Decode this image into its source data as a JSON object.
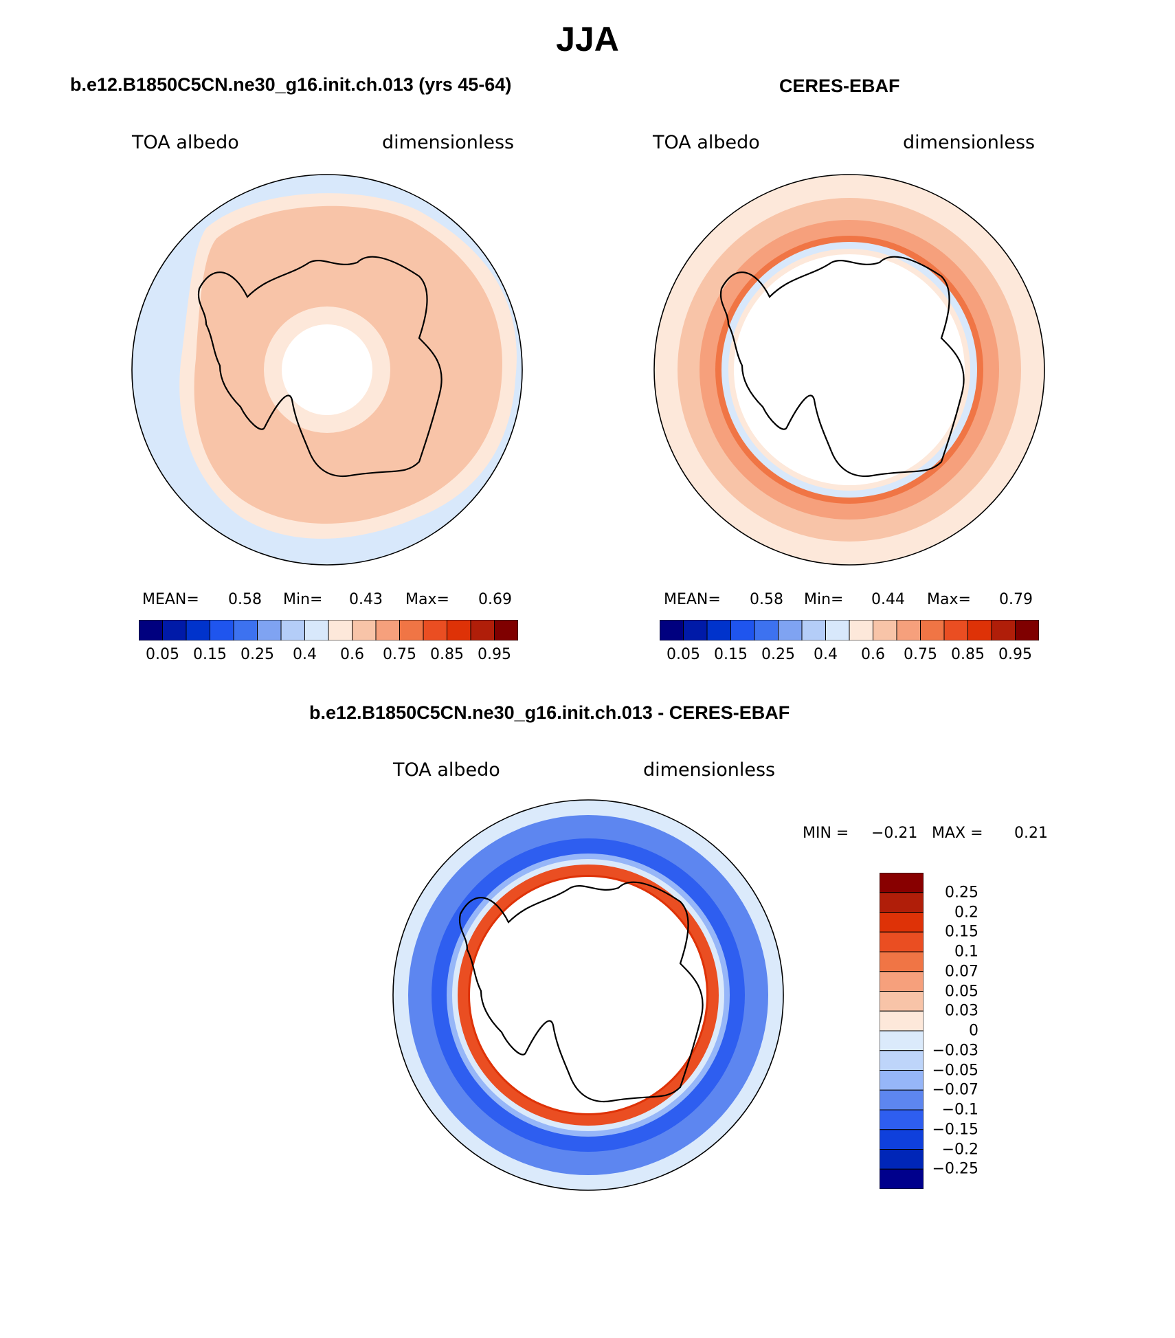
{
  "figure": {
    "title": "JJA"
  },
  "panels": {
    "model": {
      "title": "b.e12.B1850C5CN.ne30_g16.init.ch.013 (yrs 45-64)",
      "left_label": "TOA albedo",
      "right_label": "dimensionless",
      "stats": {
        "mean_label": "MEAN=",
        "mean": "0.58",
        "min_label": "Min=",
        "min": "0.43",
        "max_label": "Max=",
        "max": "0.69"
      }
    },
    "obs": {
      "title": "CERES-EBAF",
      "left_label": "TOA albedo",
      "right_label": "dimensionless",
      "stats": {
        "mean_label": "MEAN=",
        "mean": "0.58",
        "min_label": "Min=",
        "min": "0.44",
        "max_label": "Max=",
        "max": "0.79"
      }
    },
    "diff": {
      "title": "b.e12.B1850C5CN.ne30_g16.init.ch.013 - CERES-EBAF",
      "left_label": "TOA albedo",
      "right_label": "dimensionless",
      "stats": {
        "min_label": "MIN =",
        "min": "−0.21",
        "max_label": "MAX =",
        "max": "0.21"
      }
    }
  },
  "colorbars": {
    "absolute": {
      "colors": [
        "#00007f",
        "#001aa8",
        "#0033cc",
        "#1f55ee",
        "#3d72f0",
        "#7fa3f2",
        "#b4cdf8",
        "#d8e8fb",
        "#fde8da",
        "#f8c4a8",
        "#f6a07c",
        "#f07545",
        "#ea4e22",
        "#de3207",
        "#b01e09",
        "#7f0000"
      ],
      "tick_labels": [
        "0.05",
        "0.15",
        "0.25",
        "0.4",
        "0.6",
        "0.75",
        "0.85",
        "0.95"
      ]
    },
    "difference": {
      "colors": [
        "#00008c",
        "#0026b8",
        "#0f40dc",
        "#2e5ef0",
        "#5d86f0",
        "#96b6f8",
        "#bed5fa",
        "#dbeafb",
        "#fde8da",
        "#f8c4a8",
        "#f6a07c",
        "#f07545",
        "#ea4e22",
        "#de3207",
        "#b01e09",
        "#880000"
      ],
      "tick_labels": [
        "0.25",
        "0.2",
        "0.15",
        "0.1",
        "0.07",
        "0.05",
        "0.03",
        "0",
        "−0.03",
        "−0.05",
        "−0.07",
        "−0.1",
        "−0.15",
        "−0.2",
        "−0.25"
      ]
    }
  },
  "map_colors": {
    "model_outer": "#d8e8fb",
    "model_band": "#fde8da",
    "model_main": "#f8c4a8",
    "obs_base": "#fde8da",
    "obs_band": "#f8c4a8",
    "obs_strong": "#f6a07c",
    "obs_ring": "#f07545",
    "diff_outer": "#dbeafb",
    "diff_blue": "#5d86f0",
    "diff_deep": "#2e5ef0",
    "diff_ring": "#ea4e22",
    "diff_ring_dark": "#de3207"
  }
}
